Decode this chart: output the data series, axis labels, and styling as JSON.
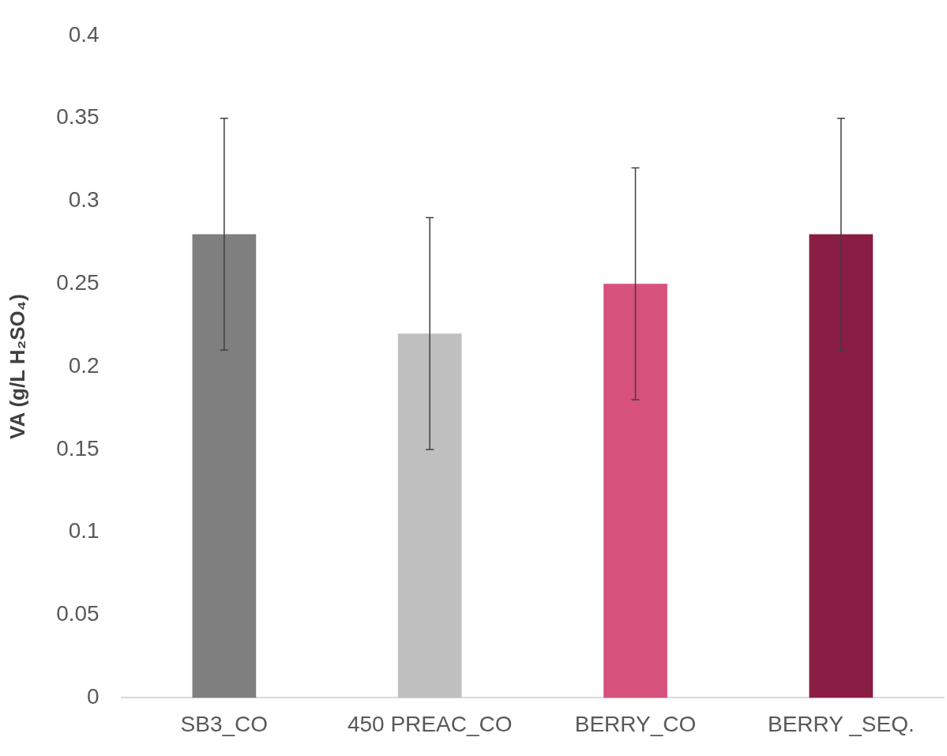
{
  "chart_data": {
    "type": "bar",
    "ylabel": "VA (g/L H₂SO₄)",
    "categories": [
      "SB3_CO",
      "450 PREAC_CO",
      "BERRY_CO",
      "BERRY _SEQ."
    ],
    "values": [
      0.28,
      0.22,
      0.25,
      0.28
    ],
    "colors": [
      "#7f7f7f",
      "#bfbfbf",
      "#d6517c",
      "#8a1d43"
    ],
    "errors": [
      0.07,
      0.07,
      0.07,
      0.07
    ],
    "ylim": [
      0,
      0.4
    ],
    "yticks": [
      0,
      0.05,
      0.1,
      0.15,
      0.2,
      0.25,
      0.3,
      0.35,
      0.4
    ],
    "grid": false,
    "legend": false
  }
}
